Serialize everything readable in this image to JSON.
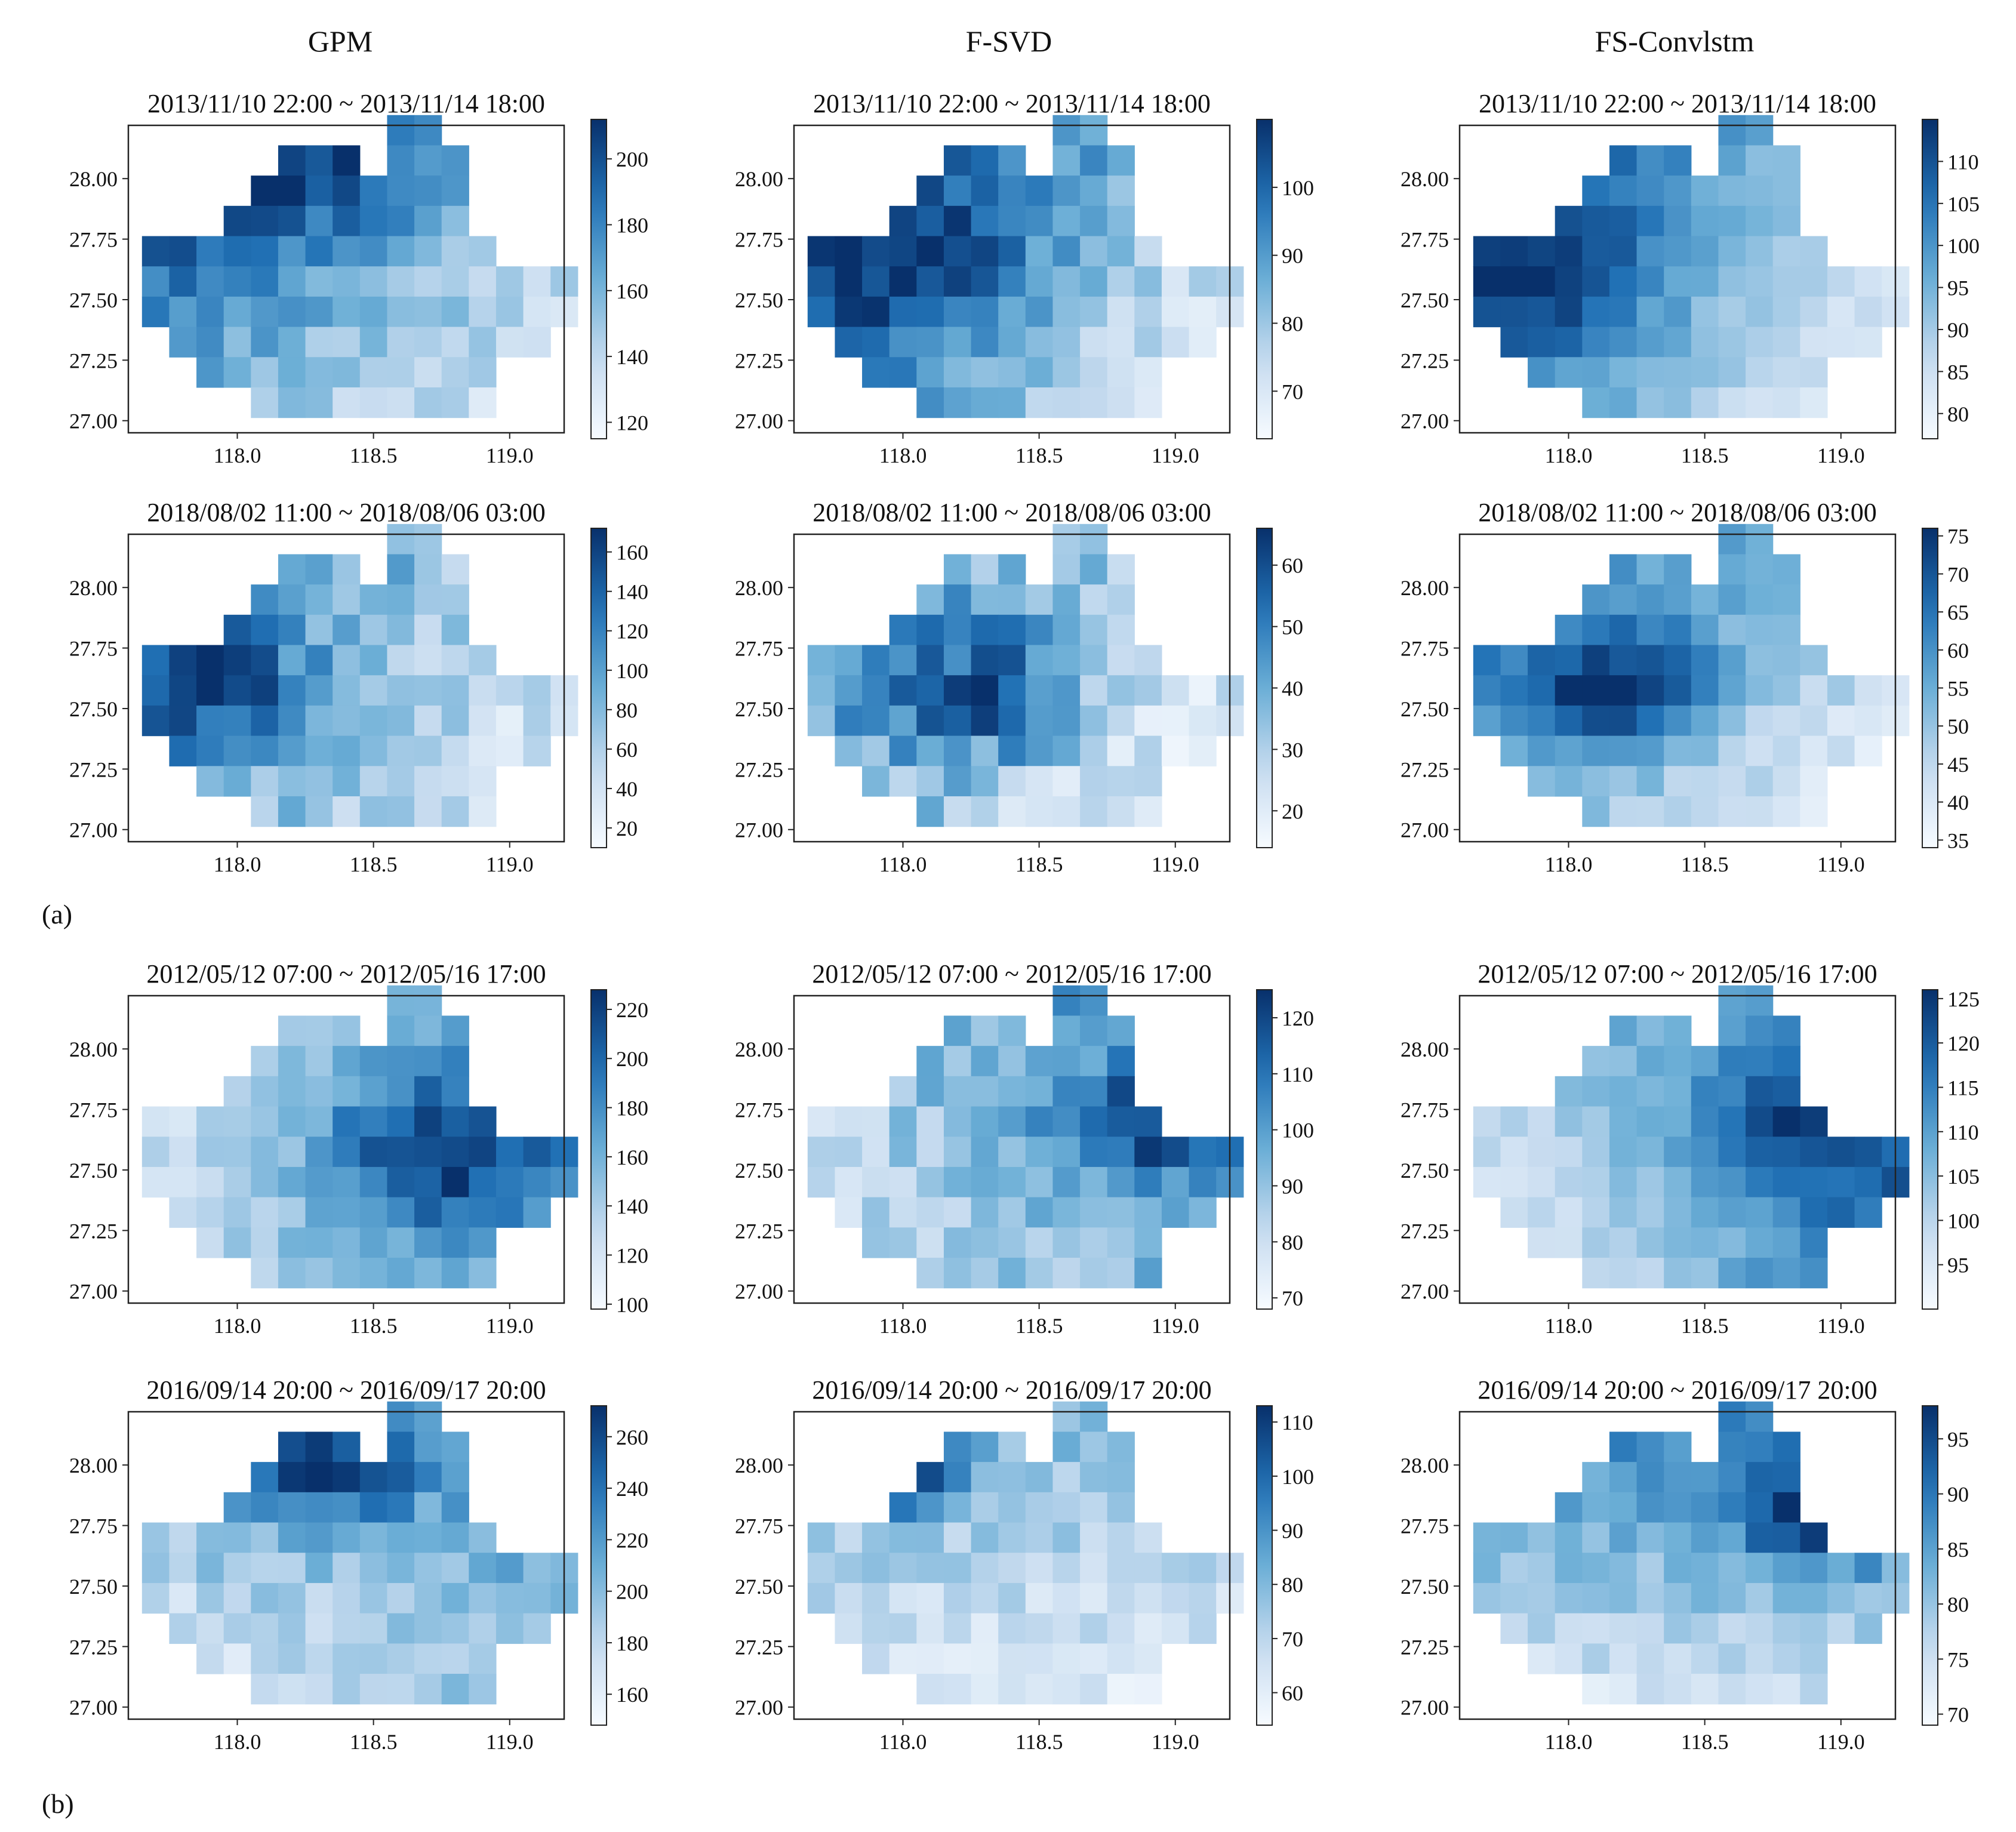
{
  "column_titles": [
    "GPM",
    "F-SVD",
    "FS-Convlstm"
  ],
  "part_labels": [
    "(a)",
    "(b)"
  ],
  "colors": {
    "cmap_light": "#f7fbff",
    "cmap_mid": "#6baed6",
    "cmap_dark": "#08306b",
    "frame": "#222222"
  },
  "chart_data": {
    "type": "heatmap",
    "grid": {
      "x_start": 117.7,
      "x_step": 0.1,
      "nx": 16,
      "y_start": 28.2,
      "y_step": 0.125,
      "ny": 10
    },
    "mask": [
      "0000000001100000",
      "0000011101110000",
      "0000111111110000",
      "0001111111110000",
      "1111111111111000",
      "1111111111111111",
      "1111111111111111",
      "0111111111111110",
      "0011111111111000",
      "0000111111111000"
    ],
    "xlim": [
      117.6,
      119.2
    ],
    "ylim": [
      26.95,
      28.22
    ],
    "xticks": [
      118.0,
      118.5,
      119.0
    ],
    "xtick_labels": [
      "118.0",
      "118.5",
      "119.0"
    ],
    "yticks": [
      27.0,
      27.25,
      27.5,
      27.75,
      28.0
    ],
    "ytick_labels": [
      "27.00",
      "27.25",
      "27.50",
      "27.75",
      "28.00"
    ],
    "panels": [
      {
        "row": 0,
        "col": 0,
        "model": "GPM",
        "title": "2013/11/10 22:00 ~ 2013/11/14 18:00",
        "vmin": 115,
        "vmax": 212,
        "cbar_ticks": [
          120,
          140,
          160,
          180,
          200
        ],
        "cbar_labels": [
          "120",
          "140",
          "160",
          "180",
          "200"
        ],
        "field": {
          "tl": 212,
          "tr": 150,
          "bl": 160,
          "br": 130,
          "cx": 0.25,
          "cy": 0.05,
          "cv": 215,
          "cr": 0.32,
          "seed": 1,
          "amp": 12
        }
      },
      {
        "row": 0,
        "col": 1,
        "model": "F-SVD",
        "title": "2013/11/10 22:00 ~ 2013/11/14 18:00",
        "vmin": 63,
        "vmax": 110,
        "cbar_ticks": [
          70,
          80,
          90,
          100
        ],
        "cbar_labels": [
          "70",
          "80",
          "90",
          "100"
        ],
        "field": {
          "tl": 108,
          "tr": 82,
          "bl": 96,
          "br": 64,
          "cx": 0.15,
          "cy": 0.45,
          "cv": 110,
          "cr": 0.3,
          "seed": 2,
          "amp": 6
        }
      },
      {
        "row": 0,
        "col": 2,
        "model": "FS-Convlstm",
        "title": "2013/11/10 22:00 ~ 2013/11/14 18:00",
        "vmin": 77,
        "vmax": 115,
        "cbar_ticks": [
          80,
          85,
          90,
          95,
          100,
          105,
          110
        ],
        "cbar_labels": [
          "80",
          "85",
          "90",
          "95",
          "100",
          "105",
          "110"
        ],
        "field": {
          "tl": 114,
          "tr": 88,
          "bl": 100,
          "br": 80,
          "cx": 0.05,
          "cy": 0.5,
          "cv": 116,
          "cr": 0.3,
          "seed": 3,
          "amp": 3
        }
      },
      {
        "row": 1,
        "col": 0,
        "model": "GPM",
        "title": "2018/08/02 11:00 ~ 2018/08/06 03:00",
        "vmin": 10,
        "vmax": 172,
        "cbar_ticks": [
          20,
          40,
          60,
          80,
          100,
          120,
          140,
          160
        ],
        "cbar_labels": [
          "20",
          "40",
          "60",
          "80",
          "100",
          "120",
          "140",
          "160"
        ],
        "field": {
          "tl": 120,
          "tr": 60,
          "bl": 100,
          "br": 20,
          "cx": 0.12,
          "cy": 0.5,
          "cv": 170,
          "cr": 0.22,
          "seed": 4,
          "amp": 25
        }
      },
      {
        "row": 1,
        "col": 1,
        "model": "F-SVD",
        "title": "2018/08/02 11:00 ~ 2018/08/06 03:00",
        "vmin": 14,
        "vmax": 66,
        "cbar_ticks": [
          20,
          30,
          40,
          50,
          60
        ],
        "cbar_labels": [
          "20",
          "30",
          "40",
          "50",
          "60"
        ],
        "field": {
          "tl": 44,
          "tr": 30,
          "bl": 38,
          "br": 16,
          "cx": 0.38,
          "cy": 0.55,
          "cv": 60,
          "cr": 0.25,
          "seed": 5,
          "amp": 9
        }
      },
      {
        "row": 1,
        "col": 2,
        "model": "FS-Convlstm",
        "title": "2018/08/02 11:00 ~ 2018/08/06 03:00",
        "vmin": 34,
        "vmax": 76,
        "cbar_ticks": [
          35,
          40,
          45,
          50,
          55,
          60,
          65,
          70,
          75
        ],
        "cbar_labels": [
          "35",
          "40",
          "45",
          "50",
          "55",
          "60",
          "65",
          "70",
          "75"
        ],
        "field": {
          "tl": 62,
          "tr": 52,
          "bl": 52,
          "br": 36,
          "cx": 0.3,
          "cy": 0.55,
          "cv": 76,
          "cr": 0.25,
          "seed": 6,
          "amp": 4
        }
      },
      {
        "row": 2,
        "col": 0,
        "model": "GPM",
        "title": "2012/05/12 07:00 ~ 2012/05/16 17:00",
        "vmin": 98,
        "vmax": 228,
        "cbar_ticks": [
          100,
          120,
          140,
          160,
          180,
          200,
          220
        ],
        "cbar_labels": [
          "100",
          "120",
          "140",
          "160",
          "180",
          "200",
          "220"
        ],
        "field": {
          "tl": 110,
          "tr": 190,
          "bl": 140,
          "br": 150,
          "cx": 0.7,
          "cy": 0.55,
          "cv": 225,
          "cr": 0.3,
          "seed": 7,
          "amp": 14
        }
      },
      {
        "row": 2,
        "col": 1,
        "model": "F-SVD",
        "title": "2012/05/12 07:00 ~ 2012/05/16 17:00",
        "vmin": 68,
        "vmax": 125,
        "cbar_ticks": [
          70,
          80,
          90,
          100,
          110,
          120
        ],
        "cbar_labels": [
          "70",
          "80",
          "90",
          "100",
          "110",
          "120"
        ],
        "field": {
          "tl": 90,
          "tr": 105,
          "bl": 78,
          "br": 100,
          "cx": 0.8,
          "cy": 0.45,
          "cv": 122,
          "cr": 0.2,
          "seed": 8,
          "amp": 8
        }
      },
      {
        "row": 2,
        "col": 2,
        "model": "FS-Convlstm",
        "title": "2012/05/12 07:00 ~ 2012/05/16 17:00",
        "vmin": 90,
        "vmax": 126,
        "cbar_ticks": [
          95,
          100,
          105,
          110,
          115,
          120,
          125
        ],
        "cbar_labels": [
          "95",
          "100",
          "105",
          "110",
          "115",
          "120",
          "125"
        ],
        "field": {
          "tl": 105,
          "tr": 115,
          "bl": 92,
          "br": 118,
          "cx": 0.8,
          "cy": 0.45,
          "cv": 125,
          "cr": 0.25,
          "seed": 9,
          "amp": 3
        }
      },
      {
        "row": 3,
        "col": 0,
        "model": "GPM",
        "title": "2016/09/14 20:00 ~ 2016/09/17 20:00",
        "vmin": 148,
        "vmax": 272,
        "cbar_ticks": [
          160,
          180,
          200,
          220,
          240,
          260
        ],
        "cbar_labels": [
          "160",
          "180",
          "200",
          "220",
          "240",
          "260"
        ],
        "field": {
          "tl": 215,
          "tr": 220,
          "bl": 160,
          "br": 200,
          "cx": 0.4,
          "cy": 0.15,
          "cv": 265,
          "cr": 0.25,
          "seed": 10,
          "amp": 16
        }
      },
      {
        "row": 3,
        "col": 1,
        "model": "F-SVD",
        "title": "2016/09/14 20:00 ~ 2016/09/17 20:00",
        "vmin": 54,
        "vmax": 113,
        "cbar_ticks": [
          60,
          70,
          80,
          90,
          100,
          110
        ],
        "cbar_labels": [
          "60",
          "70",
          "80",
          "90",
          "100",
          "110"
        ],
        "field": {
          "tl": 82,
          "tr": 78,
          "bl": 64,
          "br": 62,
          "cx": 0.2,
          "cy": 0.2,
          "cv": 110,
          "cr": 0.15,
          "seed": 11,
          "amp": 7
        }
      },
      {
        "row": 3,
        "col": 2,
        "model": "FS-Convlstm",
        "title": "2016/09/14 20:00 ~ 2016/09/17 20:00",
        "vmin": 69,
        "vmax": 98,
        "cbar_ticks": [
          70,
          75,
          80,
          85,
          90,
          95
        ],
        "cbar_labels": [
          "70",
          "75",
          "80",
          "85",
          "90",
          "95"
        ],
        "field": {
          "tl": 88,
          "tr": 90,
          "bl": 74,
          "br": 76,
          "cx": 0.8,
          "cy": 0.35,
          "cv": 97,
          "cr": 0.2,
          "seed": 12,
          "amp": 3
        }
      }
    ]
  }
}
